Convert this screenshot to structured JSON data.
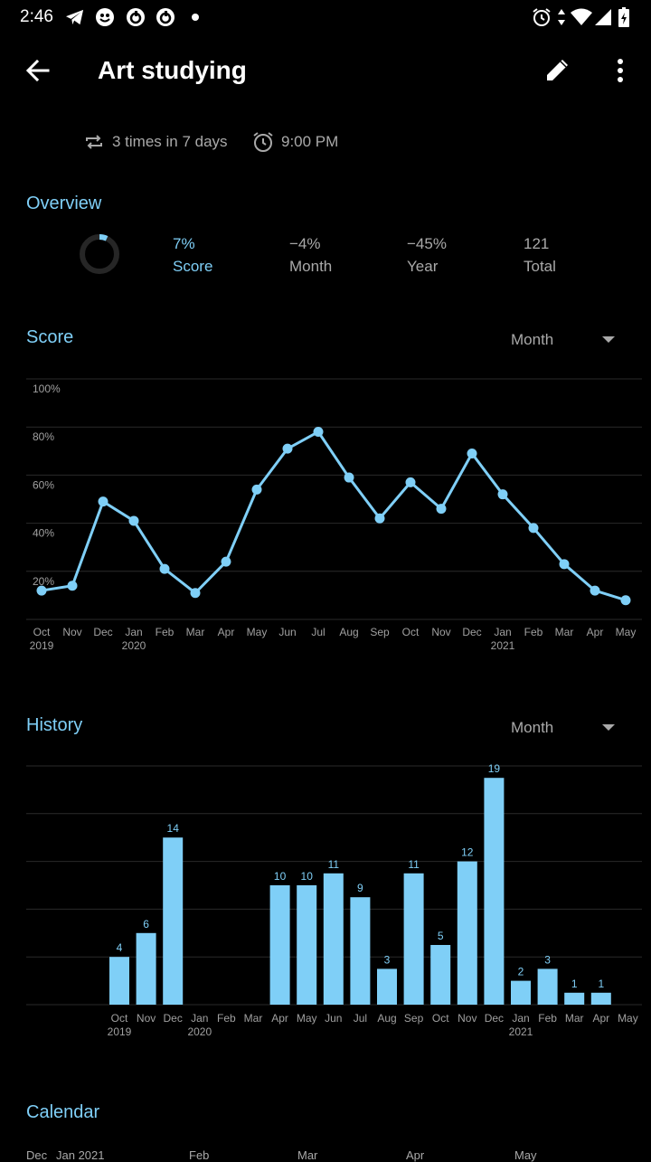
{
  "status_bar": {
    "time": "2:46"
  },
  "app_bar": {
    "title": "Art studying"
  },
  "habit_info": {
    "frequency": "3 times in 7 days",
    "reminder": "9:00 PM"
  },
  "overview": {
    "title": "Overview",
    "score_ring_fraction": 0.07,
    "stats": [
      {
        "value": "7%",
        "label": "Score"
      },
      {
        "value": "−4%",
        "label": "Month"
      },
      {
        "value": "−45%",
        "label": "Year"
      },
      {
        "value": "121",
        "label": "Total"
      }
    ]
  },
  "score_section": {
    "title": "Score",
    "dropdown": "Month",
    "y_ticks": [
      "100%",
      "80%",
      "60%",
      "40%",
      "20%"
    ],
    "x_labels": [
      {
        "month": "Oct",
        "year": "2019"
      },
      {
        "month": "Nov",
        "year": ""
      },
      {
        "month": "Dec",
        "year": ""
      },
      {
        "month": "Jan",
        "year": "2020"
      },
      {
        "month": "Feb",
        "year": ""
      },
      {
        "month": "Mar",
        "year": ""
      },
      {
        "month": "Apr",
        "year": ""
      },
      {
        "month": "May",
        "year": ""
      },
      {
        "month": "Jun",
        "year": ""
      },
      {
        "month": "Jul",
        "year": ""
      },
      {
        "month": "Aug",
        "year": ""
      },
      {
        "month": "Sep",
        "year": ""
      },
      {
        "month": "Oct",
        "year": ""
      },
      {
        "month": "Nov",
        "year": ""
      },
      {
        "month": "Dec",
        "year": ""
      },
      {
        "month": "Jan",
        "year": "2021"
      },
      {
        "month": "Feb",
        "year": ""
      },
      {
        "month": "Mar",
        "year": ""
      },
      {
        "month": "Apr",
        "year": ""
      },
      {
        "month": "May",
        "year": ""
      }
    ]
  },
  "history_section": {
    "title": "History",
    "dropdown": "Month",
    "x_labels": [
      {
        "month": "Oct",
        "year": "2019"
      },
      {
        "month": "Nov",
        "year": ""
      },
      {
        "month": "Dec",
        "year": ""
      },
      {
        "month": "Jan",
        "year": "2020"
      },
      {
        "month": "Feb",
        "year": ""
      },
      {
        "month": "Mar",
        "year": ""
      },
      {
        "month": "Apr",
        "year": ""
      },
      {
        "month": "May",
        "year": ""
      },
      {
        "month": "Jun",
        "year": ""
      },
      {
        "month": "Jul",
        "year": ""
      },
      {
        "month": "Aug",
        "year": ""
      },
      {
        "month": "Sep",
        "year": ""
      },
      {
        "month": "Oct",
        "year": ""
      },
      {
        "month": "Nov",
        "year": ""
      },
      {
        "month": "Dec",
        "year": ""
      },
      {
        "month": "Jan",
        "year": "2021"
      },
      {
        "month": "Feb",
        "year": ""
      },
      {
        "month": "Mar",
        "year": ""
      },
      {
        "month": "Apr",
        "year": ""
      },
      {
        "month": "May",
        "year": ""
      }
    ]
  },
  "calendar": {
    "title": "Calendar",
    "month_labels": [
      "Dec",
      "Jan 2021",
      "Feb",
      "Mar",
      "Apr",
      "May"
    ]
  },
  "colors": {
    "accent": "#7fcff7",
    "background": "#000000",
    "grid": "#2a2a2a",
    "muted": "#a9a9a9"
  },
  "icons": [
    "back-arrow-icon",
    "edit-icon",
    "more-vert-icon",
    "repeat-icon",
    "alarm-icon",
    "dropdown-arrow-icon"
  ],
  "chart_data": [
    {
      "type": "line",
      "title": "Score",
      "x": [
        "Oct 2019",
        "Nov 2019",
        "Dec 2019",
        "Jan 2020",
        "Feb 2020",
        "Mar 2020",
        "Apr 2020",
        "May 2020",
        "Jun 2020",
        "Jul 2020",
        "Aug 2020",
        "Sep 2020",
        "Oct 2020",
        "Nov 2020",
        "Dec 2020",
        "Jan 2021",
        "Feb 2021",
        "Mar 2021",
        "Apr 2021",
        "May 2021"
      ],
      "values": [
        12,
        14,
        49,
        41,
        21,
        11,
        24,
        54,
        71,
        78,
        59,
        42,
        57,
        46,
        69,
        52,
        38,
        23,
        12,
        8
      ],
      "ylim": [
        0,
        100
      ],
      "grid": true
    },
    {
      "type": "bar",
      "title": "History",
      "categories": [
        "Oct 2019",
        "Nov 2019",
        "Dec 2019",
        "Jan 2020",
        "Feb 2020",
        "Mar 2020",
        "Apr 2020",
        "May 2020",
        "Jun 2020",
        "Jul 2020",
        "Aug 2020",
        "Sep 2020",
        "Oct 2020",
        "Nov 2020",
        "Dec 2020",
        "Jan 2021",
        "Feb 2021",
        "Mar 2021",
        "Apr 2021",
        "May 2021"
      ],
      "values": [
        4,
        6,
        14,
        0,
        0,
        0,
        10,
        10,
        11,
        9,
        3,
        11,
        5,
        12,
        19,
        2,
        3,
        1,
        1,
        0
      ],
      "ylim": [
        0,
        20
      ],
      "grid": true
    }
  ]
}
